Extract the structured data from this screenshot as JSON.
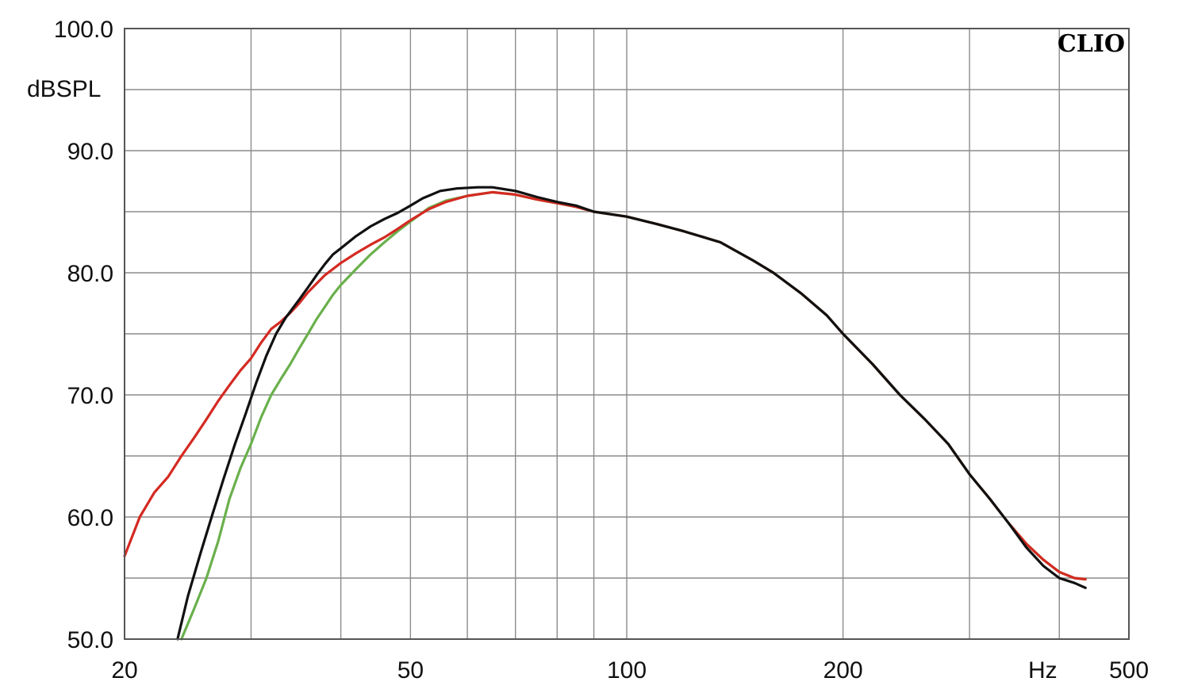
{
  "chart_data": {
    "type": "line",
    "title": "",
    "brand": "CLIO",
    "xlabel": "",
    "ylabel": "",
    "x_unit_label": "Hz",
    "y_unit_label": "dBSPL",
    "x_scale": "log",
    "xlim": [
      20,
      500
    ],
    "ylim": [
      50,
      100
    ],
    "grid": true,
    "x_ticks": [
      20,
      30,
      40,
      50,
      60,
      70,
      80,
      90,
      100,
      200,
      300,
      400,
      500
    ],
    "x_tick_labels": [
      {
        "value": 20,
        "text": "20"
      },
      {
        "value": 50,
        "text": "50"
      },
      {
        "value": 100,
        "text": "100"
      },
      {
        "value": 200,
        "text": "200"
      },
      {
        "value": 500,
        "text": "500"
      }
    ],
    "y_ticks": [
      50,
      55,
      60,
      65,
      70,
      75,
      80,
      85,
      90,
      95,
      100
    ],
    "y_tick_labels": [
      {
        "value": 50,
        "text": "50.0"
      },
      {
        "value": 60,
        "text": "60.0"
      },
      {
        "value": 70,
        "text": "70.0"
      },
      {
        "value": 80,
        "text": "80.0"
      },
      {
        "value": 90,
        "text": "90.0"
      },
      {
        "value": 100,
        "text": "100.0"
      }
    ],
    "series": [
      {
        "color": "#6ab04c",
        "points": [
          [
            24.0,
            50.0
          ],
          [
            25,
            52.5
          ],
          [
            26,
            55
          ],
          [
            27,
            58
          ],
          [
            28,
            61.5
          ],
          [
            29,
            64
          ],
          [
            30,
            66
          ],
          [
            31,
            68.2
          ],
          [
            32,
            70
          ],
          [
            33,
            71.3
          ],
          [
            34,
            72.5
          ],
          [
            35,
            73.8
          ],
          [
            36,
            75
          ],
          [
            37,
            76.2
          ],
          [
            38,
            77.2
          ],
          [
            39,
            78.2
          ],
          [
            40,
            79
          ],
          [
            42,
            80.3
          ],
          [
            44,
            81.5
          ],
          [
            46,
            82.5
          ],
          [
            48,
            83.4
          ],
          [
            50,
            84.2
          ],
          [
            53,
            85.3
          ],
          [
            56,
            85.9
          ],
          [
            60,
            86.3
          ],
          [
            65,
            86.6
          ],
          [
            70,
            86.4
          ],
          [
            75,
            86.0
          ],
          [
            80,
            85.7
          ],
          [
            85,
            85.4
          ],
          [
            90,
            85.0
          ],
          [
            100,
            84.6
          ],
          [
            110,
            84.0
          ],
          [
            120,
            83.4
          ],
          [
            135,
            82.5
          ],
          [
            150,
            81
          ],
          [
            160,
            80
          ],
          [
            175,
            78.3
          ],
          [
            190,
            76.5
          ],
          [
            200,
            75
          ],
          [
            220,
            72.5
          ],
          [
            240,
            70
          ],
          [
            260,
            68
          ],
          [
            280,
            66
          ],
          [
            300,
            63.5
          ],
          [
            320,
            61.5
          ],
          [
            340,
            59.5
          ],
          [
            360,
            57.8
          ],
          [
            380,
            56.5
          ],
          [
            400,
            55.5
          ],
          [
            420,
            55.0
          ],
          [
            435,
            54.9
          ]
        ]
      },
      {
        "color": "#d42a22",
        "points": [
          [
            20,
            56.8
          ],
          [
            21,
            60.0
          ],
          [
            22,
            62.0
          ],
          [
            23,
            63.3
          ],
          [
            24,
            65.0
          ],
          [
            25,
            66.5
          ],
          [
            26,
            68.0
          ],
          [
            27,
            69.5
          ],
          [
            28,
            70.8
          ],
          [
            29,
            72.0
          ],
          [
            30,
            73.0
          ],
          [
            31,
            74.3
          ],
          [
            32,
            75.4
          ],
          [
            33,
            76.0
          ],
          [
            34,
            76.7
          ],
          [
            35,
            77.5
          ],
          [
            36,
            78.4
          ],
          [
            38,
            79.8
          ],
          [
            40,
            80.8
          ],
          [
            42,
            81.6
          ],
          [
            44,
            82.3
          ],
          [
            46,
            82.9
          ],
          [
            48,
            83.6
          ],
          [
            50,
            84.3
          ],
          [
            53,
            85.2
          ],
          [
            56,
            85.8
          ],
          [
            60,
            86.3
          ],
          [
            65,
            86.6
          ],
          [
            70,
            86.4
          ],
          [
            75,
            86.0
          ],
          [
            80,
            85.7
          ],
          [
            85,
            85.4
          ],
          [
            90,
            85.0
          ],
          [
            100,
            84.6
          ],
          [
            110,
            84.0
          ],
          [
            120,
            83.4
          ],
          [
            135,
            82.5
          ],
          [
            150,
            81
          ],
          [
            160,
            80
          ],
          [
            175,
            78.3
          ],
          [
            190,
            76.5
          ],
          [
            200,
            75
          ],
          [
            220,
            72.5
          ],
          [
            240,
            70
          ],
          [
            260,
            68
          ],
          [
            280,
            66
          ],
          [
            300,
            63.5
          ],
          [
            320,
            61.5
          ],
          [
            340,
            59.5
          ],
          [
            360,
            57.8
          ],
          [
            380,
            56.5
          ],
          [
            400,
            55.5
          ],
          [
            420,
            55.0
          ],
          [
            435,
            54.9
          ]
        ]
      },
      {
        "color": "#111111",
        "points": [
          [
            23.7,
            50.0
          ],
          [
            24.5,
            53.5
          ],
          [
            25.5,
            57.0
          ],
          [
            26.5,
            60.2
          ],
          [
            27.5,
            63.2
          ],
          [
            28.5,
            66.0
          ],
          [
            29.5,
            68.5
          ],
          [
            30.5,
            71.0
          ],
          [
            31.5,
            73.2
          ],
          [
            32.5,
            75.0
          ],
          [
            33.5,
            76.3
          ],
          [
            35,
            77.8
          ],
          [
            36,
            78.8
          ],
          [
            37,
            79.8
          ],
          [
            38,
            80.7
          ],
          [
            39,
            81.5
          ],
          [
            40,
            82.0
          ],
          [
            42,
            83.0
          ],
          [
            44,
            83.8
          ],
          [
            46,
            84.4
          ],
          [
            48,
            84.9
          ],
          [
            50,
            85.5
          ],
          [
            52,
            86.1
          ],
          [
            55,
            86.7
          ],
          [
            58,
            86.9
          ],
          [
            62,
            87.0
          ],
          [
            65,
            87.0
          ],
          [
            70,
            86.7
          ],
          [
            75,
            86.2
          ],
          [
            80,
            85.8
          ],
          [
            85,
            85.5
          ],
          [
            90,
            85.0
          ],
          [
            100,
            84.6
          ],
          [
            110,
            84.0
          ],
          [
            120,
            83.4
          ],
          [
            135,
            82.5
          ],
          [
            150,
            81
          ],
          [
            160,
            80
          ],
          [
            175,
            78.3
          ],
          [
            190,
            76.5
          ],
          [
            200,
            75
          ],
          [
            220,
            72.5
          ],
          [
            240,
            70
          ],
          [
            260,
            68
          ],
          [
            280,
            66
          ],
          [
            300,
            63.5
          ],
          [
            320,
            61.5
          ],
          [
            340,
            59.5
          ],
          [
            360,
            57.5
          ],
          [
            380,
            56.0
          ],
          [
            400,
            55.0
          ],
          [
            420,
            54.6
          ],
          [
            435,
            54.2
          ]
        ]
      }
    ]
  }
}
